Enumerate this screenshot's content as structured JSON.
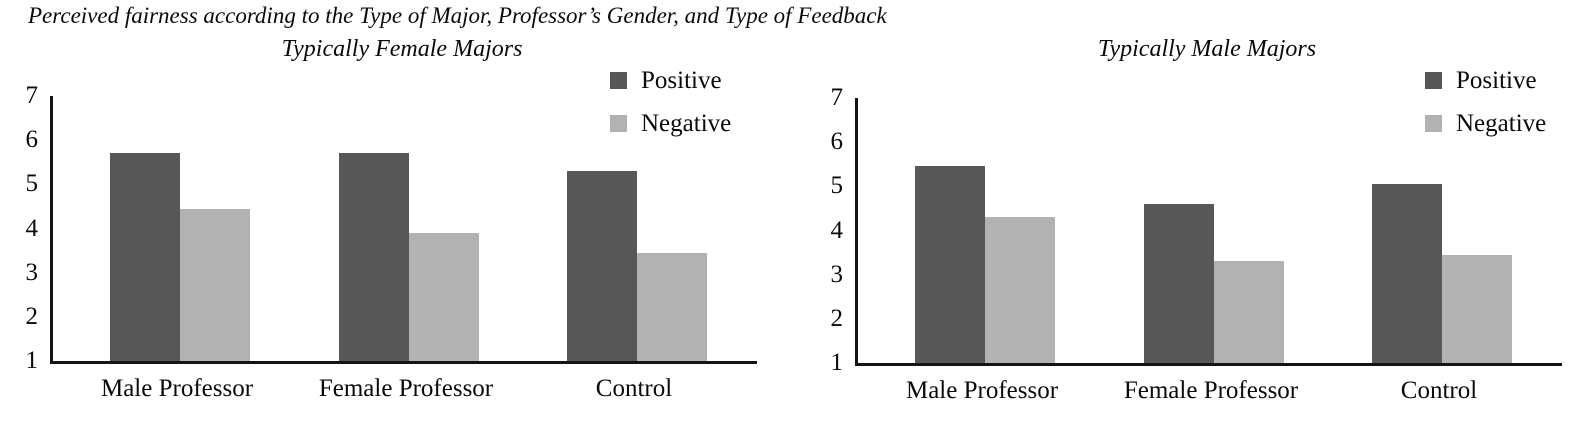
{
  "page": {
    "title": "Perceived fairness according to the Type of Major, Professor’s Gender, and Type of Feedback"
  },
  "colors": {
    "positive": "#575757",
    "negative": "#b2b2b2",
    "axis": "#141414"
  },
  "chart_data": [
    {
      "type": "bar",
      "title": "Typically Female Majors",
      "categories": [
        "Male Professor",
        "Female Professor",
        "Control"
      ],
      "series": [
        {
          "name": "Positive",
          "values": [
            5.7,
            5.7,
            5.3
          ]
        },
        {
          "name": "Negative",
          "values": [
            4.45,
            3.9,
            3.45
          ]
        }
      ],
      "ylim": [
        1,
        7
      ],
      "yticks": [
        7,
        6,
        5,
        4,
        3,
        2,
        1
      ],
      "grid": false,
      "legend_position": "top-right"
    },
    {
      "type": "bar",
      "title": "Typically Male Majors",
      "categories": [
        "Male Professor",
        "Female Professor",
        "Control"
      ],
      "series": [
        {
          "name": "Positive",
          "values": [
            5.45,
            4.6,
            5.05
          ]
        },
        {
          "name": "Negative",
          "values": [
            4.3,
            3.3,
            3.45
          ]
        }
      ],
      "ylim": [
        1,
        7
      ],
      "yticks": [
        7,
        6,
        5,
        4,
        3,
        2,
        1
      ],
      "grid": false,
      "legend_position": "top-right"
    }
  ]
}
